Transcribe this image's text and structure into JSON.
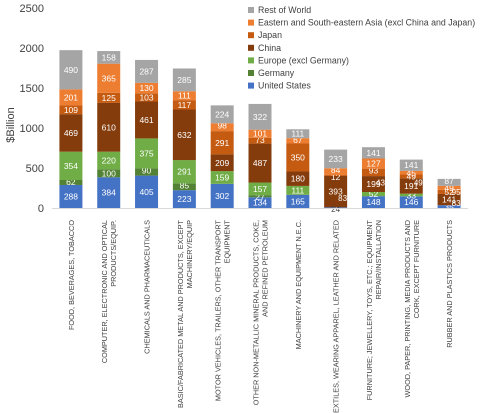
{
  "chart_data": {
    "type": "bar",
    "stacked": true,
    "ylabel": "$Billion",
    "ylim": [
      0,
      2500
    ],
    "yticks": [
      "0",
      "500",
      "1000",
      "1500",
      "2000",
      "2500"
    ],
    "grid": false,
    "legend_position": "top-right",
    "categories": [
      "FOOD, BEVERAGES, TOBACCO",
      "COMPUTER, ELECTRONIC AND OPTICAL PRODUCTS/EQUIP.",
      "CHEMICALS AND PHARMACEUTICALS",
      "BASIC/FABRICATED METAL AND PRODUCTS, EXCEPT MACHINERY/EQUIP",
      "MOTOR VEHICLES, TRAILERS, OTHER TRANSPORT EQUIPMENT",
      "OTHER NON-METALLIC MINERAL PRODUCTS, COKE, AND REFINED PETROLEUM",
      "MACHINERY AND EQUIPMENT N.E.C.",
      "TEXTILES, WEARING APPAREL, LEATHER AND RELATED",
      "FURNITURE; JEWELLERY, TOYS, ETC.; EQUIPMENT REPAIR/INSTALLATION",
      "WOOD, PAPER, PRINTING, MEDIA PRODUCTS AND CORK, EXCEPT FURNITURE",
      "RUBBER AND PLASTICS PRODUCTS"
    ],
    "category_lines": [
      [
        "FOOD, BEVERAGES, TOBACCO"
      ],
      [
        "COMPUTER, ELECTRONIC AND OPTICAL",
        "PRODUCTS/EQUIP."
      ],
      [
        "CHEMICALS AND PHARMACEUTICALS"
      ],
      [
        "BASIC/FABRICATED METAL AND PRODUCTS, EXCEPT",
        "MACHINERY/EQUIP"
      ],
      [
        "MOTOR VEHICLES, TRAILERS, OTHER TRANSPORT",
        "EQUIPMENT"
      ],
      [
        "OTHER NON-METALLIC MINERAL PRODUCTS, COKE,",
        "AND REFINED PETROLEUM"
      ],
      [
        "MACHINERY AND EQUIPMENT N.E.C."
      ],
      [
        "TEXTILES, WEARING APPAREL, LEATHER AND RELATED"
      ],
      [
        "FURNITURE; JEWELLERY, TOYS, ETC.; EQUIPMENT",
        "REPAIR/INSTALLATION"
      ],
      [
        "WOOD, PAPER, PRINTING, MEDIA PRODUCTS AND",
        "CORK, EXCEPT FURNITURE"
      ],
      [
        "RUBBER AND PLASTICS PRODUCTS"
      ]
    ],
    "series": [
      {
        "name": "United States",
        "color": "#4472c4",
        "values": [
          288,
          384,
          405,
          223,
          302,
          134,
          165,
          8,
          148,
          146,
          35
        ],
        "labels": [
          "288",
          "384",
          "405",
          "223",
          "302",
          "134",
          "165",
          "8",
          "148",
          "146",
          "35"
        ]
      },
      {
        "name": "Germany",
        "color": "#548235",
        "values": [
          62,
          100,
          90,
          85,
          0,
          27,
          0,
          0,
          0,
          0,
          0
        ],
        "labels": [
          "62",
          "100",
          "90",
          "85",
          "",
          "27",
          "",
          "",
          "",
          "",
          ""
        ]
      },
      {
        "name": "Europe (excl Germany)",
        "color": "#70ad47",
        "values": [
          354,
          220,
          375,
          291,
          159,
          157,
          111,
          0,
          52,
          33,
          0
        ],
        "labels": [
          "354",
          "220",
          "375",
          "291",
          "159",
          "157",
          "111",
          "",
          "52",
          "33",
          ""
        ]
      },
      {
        "name": "China",
        "color": "#843c0c",
        "values": [
          469,
          610,
          461,
          632,
          209,
          487,
          180,
          393,
          199,
          191,
          141
        ],
        "labels": [
          "469",
          "610",
          "461",
          "632",
          "209",
          "487",
          "180",
          "393",
          "199",
          "191",
          "141"
        ]
      },
      {
        "name": "Japan",
        "color": "#c55a11",
        "values": [
          109,
          125,
          103,
          117,
          291,
          73,
          350,
          12,
          93,
          49,
          52
        ],
        "labels": [
          "109",
          "125",
          "103",
          "117",
          "291",
          "73",
          "350",
          "12",
          "93",
          "49",
          "52"
        ]
      },
      {
        "name": "Eastern and South-eastern Asia (excl China and Japan)",
        "color": "#ed7d31",
        "values": [
          201,
          365,
          130,
          111,
          98,
          101,
          67,
          84,
          127,
          45,
          49
        ],
        "labels": [
          "201",
          "365",
          "130",
          "111",
          "98",
          "101",
          "67",
          "84",
          "127",
          "45",
          "49"
        ]
      },
      {
        "name": "Rest of World",
        "color": "#a5a5a5",
        "values": [
          490,
          158,
          287,
          285,
          224,
          322,
          111,
          233,
          141,
          141,
          87
        ],
        "labels": [
          "490",
          "158",
          "287",
          "285",
          "224",
          "322",
          "111",
          "233",
          "141",
          "141",
          "87"
        ]
      }
    ],
    "extra_labels": [
      {
        "category_index": 7,
        "text": "24"
      },
      {
        "category_index": 7,
        "text": "83"
      },
      {
        "category_index": 8,
        "text": "43"
      },
      {
        "category_index": 9,
        "text": "49"
      },
      {
        "category_index": 10,
        "text": "95"
      },
      {
        "category_index": 10,
        "text": "83"
      }
    ]
  }
}
